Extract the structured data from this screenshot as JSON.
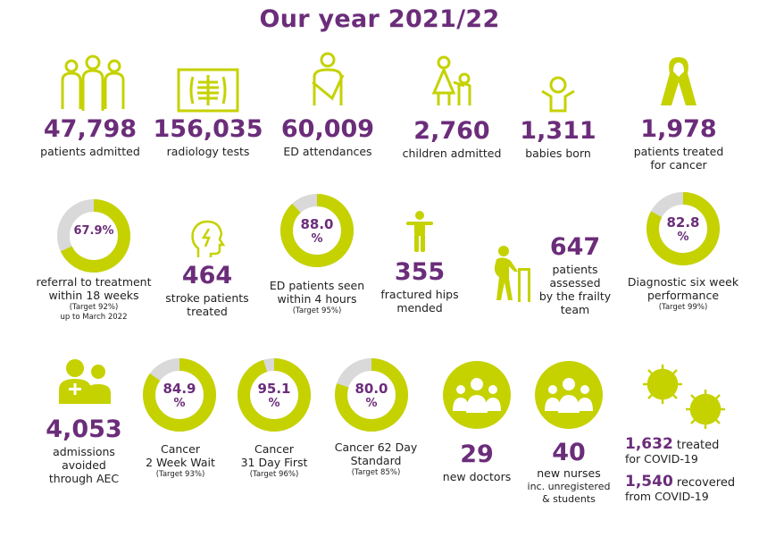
{
  "title": "Our year 2021/22",
  "colors": {
    "purple": "#6b2d7a",
    "lime": "#c5d200",
    "grey": "#d9d9d9",
    "text": "#222222"
  },
  "row1": [
    {
      "icon": "family-group-icon",
      "value": "47,798",
      "label": "patients admitted"
    },
    {
      "icon": "xray-icon",
      "value": "156,035",
      "label": "radiology tests"
    },
    {
      "icon": "arm-sling-icon",
      "value": "60,009",
      "label": "ED attendances"
    },
    {
      "icon": "parent-child-icon",
      "value": "2,760",
      "label": "children admitted"
    },
    {
      "icon": "baby-icon",
      "value": "1,311",
      "label": "babies born"
    },
    {
      "icon": "cancer-ribbon-icon",
      "value": "1,978",
      "label1": "patients treated",
      "label2": "for cancer"
    }
  ],
  "row2": {
    "referral": {
      "pct": 67.9,
      "text": "67.9%",
      "line1": "referral to treatment",
      "line2": "within 18 weeks",
      "target": "(Target 92%)",
      "extra": "up to March 2022"
    },
    "stroke": {
      "icon": "head-lightning-icon",
      "value": "464",
      "line1": "stroke patients",
      "line2": "treated"
    },
    "ed": {
      "pct": 88.0,
      "text1": "88.0",
      "text2": "%",
      "line1": "ED patients seen",
      "line2": "within 4 hours",
      "target": "(Target 95%)"
    },
    "hips": {
      "icon": "person-arms-out-icon",
      "value": "355",
      "line1": "fractured hips",
      "line2": "mended"
    },
    "frailty": {
      "icon": "elderly-walker-icon",
      "value": "647",
      "line1": "patients",
      "line2": "assessed",
      "line3": "by the frailty",
      "line4": "team"
    },
    "diagnostic": {
      "pct": 82.8,
      "text1": "82.8",
      "text2": "%",
      "line1": "Diagnostic six week",
      "line2": "performance",
      "target": "(Target 99%)"
    }
  },
  "row3": {
    "aec": {
      "icon": "medical-staff-icon",
      "value": "4,053",
      "line1": "admissions",
      "line2": "avoided",
      "line3": "through AEC"
    },
    "c2ww": {
      "pct": 84.9,
      "text1": "84.9",
      "text2": "%",
      "line1": "Cancer",
      "line2": "2 Week Wait",
      "target": "(Target 93%)"
    },
    "c31": {
      "pct": 95.1,
      "text1": "95.1",
      "text2": "%",
      "line1": "Cancer",
      "line2": "31 Day First",
      "target": "(Target 96%)"
    },
    "c62": {
      "pct": 80.0,
      "text1": "80.0",
      "text2": "%",
      "line1": "Cancer 62 Day",
      "line2": "Standard",
      "target": "(Target 85%)"
    },
    "doctors": {
      "icon": "doctors-group-icon",
      "value": "29",
      "label": "new doctors"
    },
    "nurses": {
      "icon": "nurses-group-icon",
      "value": "40",
      "line1": "new nurses",
      "line2": "inc. unregistered",
      "line3": "& students"
    },
    "covid": {
      "icon": "virus-icon",
      "treated_value": "1,632",
      "treated_label": "treated",
      "treated_line2": "for COVID-19",
      "recovered_value": "1,540",
      "recovered_label": "recovered",
      "recovered_line2": "from COVID-19"
    }
  }
}
